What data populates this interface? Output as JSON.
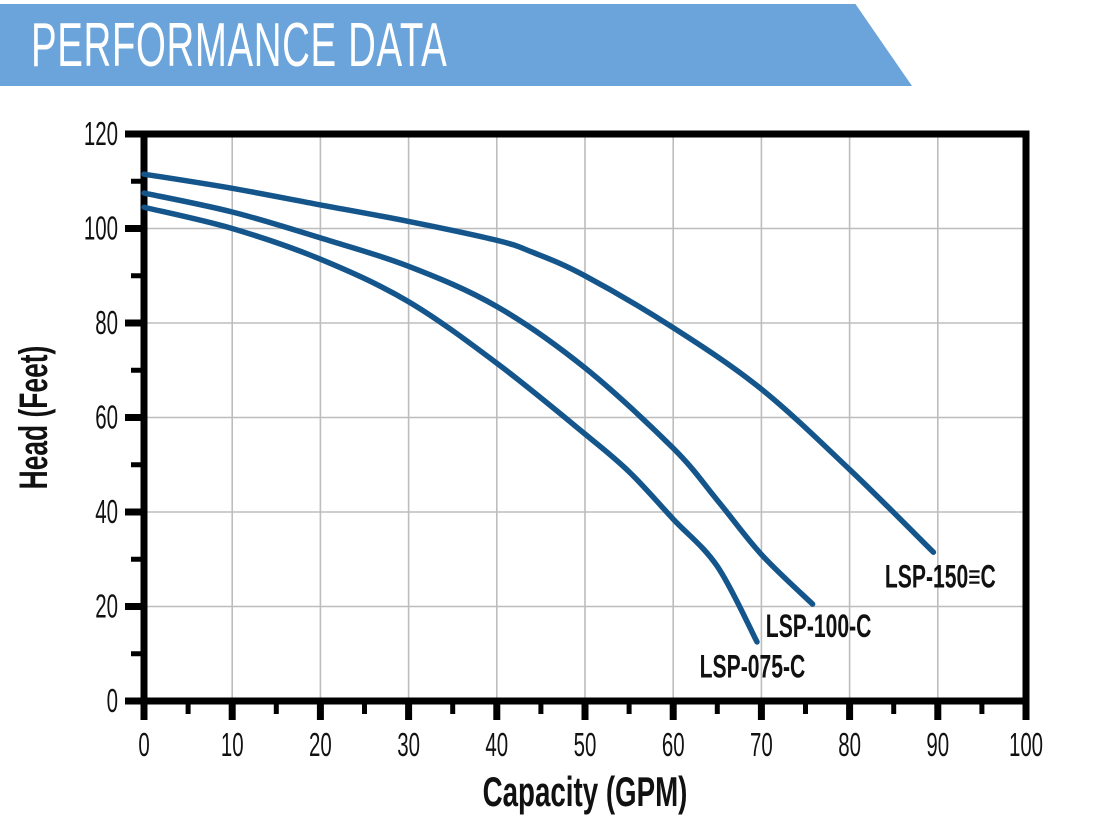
{
  "banner": {
    "title": "PERFORMANCE DATA",
    "bg_color": "#6BA4DB",
    "text_color": "#FFFFFF"
  },
  "chart_data": {
    "type": "line",
    "title": "",
    "xlabel": "Capacity (GPM)",
    "ylabel": "Head (Feet)",
    "xlim": [
      0,
      100
    ],
    "ylim": [
      0,
      120
    ],
    "x_major_ticks": [
      0,
      10,
      20,
      30,
      40,
      50,
      60,
      70,
      80,
      90,
      100
    ],
    "x_minor_ticks": [
      5,
      15,
      25,
      35,
      45,
      55,
      65,
      75,
      85,
      95
    ],
    "y_major_ticks": [
      0,
      20,
      40,
      60,
      80,
      100,
      120
    ],
    "y_minor_ticks": [
      10,
      30,
      50,
      70,
      90,
      110
    ],
    "grid": "major",
    "legend_position": "inline-labels",
    "grid_color": "#BDBDBD",
    "frame_color": "#000000",
    "tick_label_color": "#111111",
    "curve_color": "#14568C",
    "series": [
      {
        "name": "LSP-075-C",
        "points": [
          [
            0,
            104.5
          ],
          [
            10,
            100
          ],
          [
            20,
            93.5
          ],
          [
            30,
            84.5
          ],
          [
            40,
            71.5
          ],
          [
            50,
            56.5
          ],
          [
            55,
            48.5
          ],
          [
            60,
            38.5
          ],
          [
            65,
            28.5
          ],
          [
            69.5,
            12.5
          ]
        ],
        "label": {
          "text": "LSP-075-C",
          "x": 63,
          "y": 5
        }
      },
      {
        "name": "LSP-100-C",
        "points": [
          [
            0,
            107.5
          ],
          [
            10,
            103.5
          ],
          [
            20,
            98
          ],
          [
            30,
            92
          ],
          [
            40,
            83.5
          ],
          [
            50,
            70.5
          ],
          [
            60,
            53.5
          ],
          [
            65,
            42.5
          ],
          [
            70,
            31
          ],
          [
            75.8,
            20.5
          ]
        ],
        "label": {
          "text": "LSP-100-C",
          "x": 70.5,
          "y": 13.5
        }
      },
      {
        "name": "LSP-150-C",
        "points": [
          [
            0,
            111.5
          ],
          [
            10,
            108.5
          ],
          [
            20,
            105
          ],
          [
            30,
            101.5
          ],
          [
            40,
            97.5
          ],
          [
            44,
            95
          ],
          [
            50,
            90
          ],
          [
            60,
            79
          ],
          [
            70,
            66
          ],
          [
            80,
            49
          ],
          [
            89.5,
            31.5
          ]
        ],
        "label": {
          "text": "LSP-150≡C",
          "x": 84,
          "y": 24
        }
      }
    ]
  }
}
